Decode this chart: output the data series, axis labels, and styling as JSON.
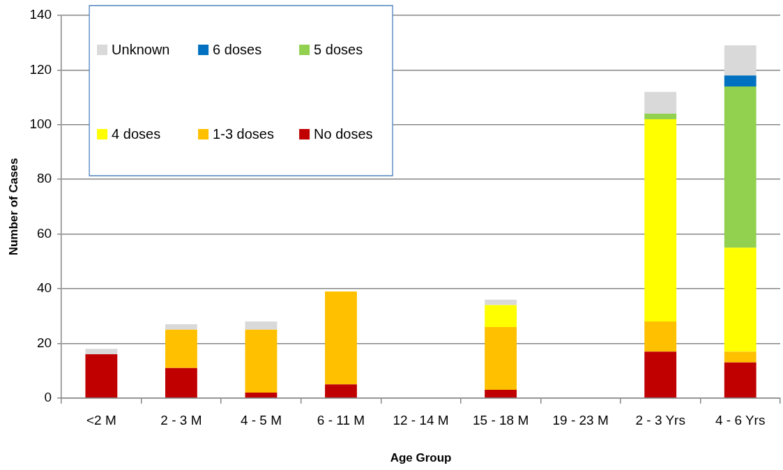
{
  "chart_data": {
    "type": "bar",
    "stacked": true,
    "xlabel": "Age Group",
    "ylabel": "Number of Cases",
    "categories": [
      "<2 M",
      "2 - 3 M",
      "4 - 5 M",
      "6 - 11 M",
      "12 - 14 M",
      "15 - 18 M",
      "19 - 23 M",
      "2 - 3 Yrs",
      "4 - 6 Yrs"
    ],
    "series": [
      {
        "name": "No doses",
        "color": "#c00000",
        "values": [
          16,
          11,
          2,
          5,
          0,
          3,
          0,
          17,
          13
        ]
      },
      {
        "name": "1-3 doses",
        "color": "#ffc000",
        "values": [
          0,
          14,
          23,
          34,
          0,
          23,
          0,
          11,
          4
        ]
      },
      {
        "name": "4 doses",
        "color": "#ffff00",
        "values": [
          0,
          0,
          0,
          0,
          0,
          8,
          0,
          74,
          38
        ]
      },
      {
        "name": "5 doses",
        "color": "#92d050",
        "values": [
          0,
          0,
          0,
          0,
          0,
          0,
          0,
          2,
          59
        ]
      },
      {
        "name": "6 doses",
        "color": "#0070c0",
        "values": [
          0,
          0,
          0,
          0,
          0,
          0,
          0,
          0,
          4
        ]
      },
      {
        "name": "Unknown",
        "color": "#d9d9d9",
        "values": [
          2,
          2,
          3,
          0,
          0,
          2,
          0,
          8,
          11
        ]
      }
    ],
    "ylim": [
      0,
      140
    ],
    "yticks": [
      0,
      20,
      40,
      60,
      80,
      100,
      120,
      140
    ],
    "grid": "y",
    "legend": "top left"
  }
}
